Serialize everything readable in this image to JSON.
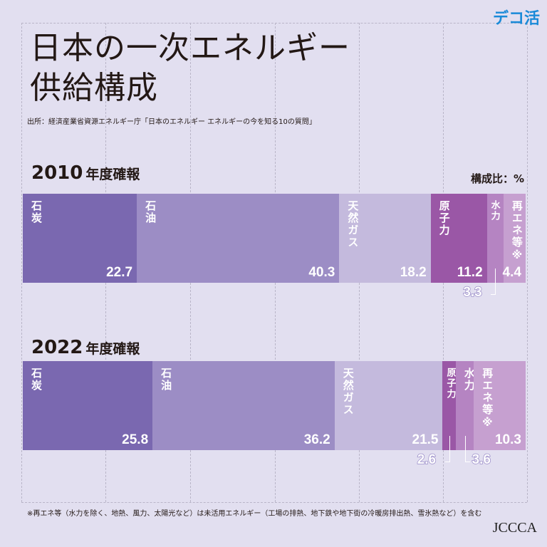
{
  "title_line1": "日本の一次エネルギー",
  "title_line2": "供給構成",
  "source": "出所：経済産業省資源エネルギー庁「日本のエネルギー エネルギーの今を知る10の質問」",
  "unit": "構成比：%",
  "footnote": "※再エネ等（水力を除く、地熱、風力、太陽光など）は未活用エネルギー（工場の排熱、地下鉄や地下街の冷暖房排出熱、雪氷熱など）を含む",
  "logo_top": "デコ活",
  "logo_bottom": "JCCCA",
  "chart_data": {
    "type": "bar",
    "stacked": true,
    "orientation": "horizontal",
    "categories": [
      "石炭",
      "石油",
      "天然ガス",
      "原子力",
      "水力",
      "再エネ等※"
    ],
    "colors": [
      "#7a68b0",
      "#9c8dc5",
      "#c4badd",
      "#9a57a6",
      "#b584c2",
      "#c6a0d0"
    ],
    "bars": [
      {
        "year": "2010",
        "suffix": "年度確報",
        "values": [
          22.7,
          40.3,
          18.2,
          11.2,
          3.3,
          4.4
        ]
      },
      {
        "year": "2022",
        "suffix": "年度確報",
        "values": [
          25.8,
          36.2,
          21.5,
          2.6,
          3.6,
          10.3
        ]
      }
    ]
  }
}
